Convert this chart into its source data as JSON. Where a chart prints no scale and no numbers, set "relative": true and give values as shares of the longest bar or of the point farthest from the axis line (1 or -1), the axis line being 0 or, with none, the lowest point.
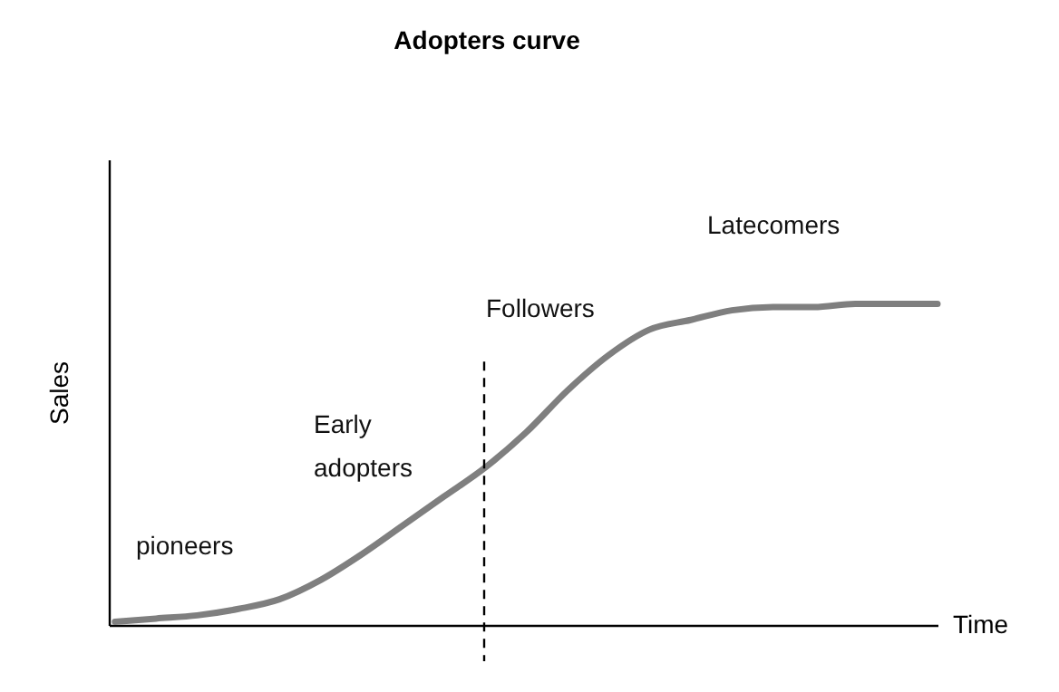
{
  "chart_data": {
    "type": "line",
    "title": "Adopters curve",
    "xlabel": "Time",
    "ylabel": "Sales",
    "relative": true,
    "categories": [
      null,
      null,
      null,
      null,
      null,
      null,
      null,
      null,
      null,
      null,
      null,
      null,
      null,
      null,
      null,
      null,
      null,
      null,
      null,
      null,
      null
    ],
    "series": [
      {
        "color": "#7f7f7f",
        "values": [
          0.01,
          0.02,
          0.03,
          0.05,
          0.08,
          0.14,
          0.22,
          0.31,
          0.4,
          0.49,
          0.6,
          0.73,
          0.84,
          0.92,
          0.95,
          0.98,
          0.99,
          0.99,
          1,
          1,
          1
        ]
      }
    ],
    "annotations": [
      "pioneers",
      "Early adopters",
      "Followers",
      "Latecomers"
    ],
    "grid": false
  }
}
